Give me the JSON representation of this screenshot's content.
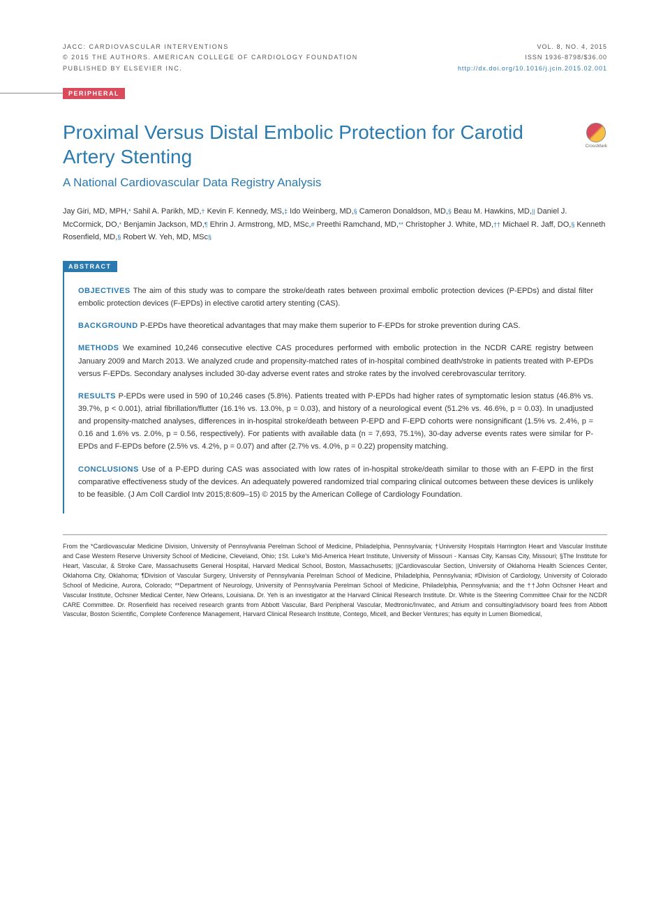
{
  "header": {
    "journal": "JACC: CARDIOVASCULAR INTERVENTIONS",
    "copyright": "© 2015 THE AUTHORS. AMERICAN COLLEGE OF CARDIOLOGY FOUNDATION",
    "publisher": "PUBLISHED BY ELSEVIER INC.",
    "vol": "VOL. 8, NO. 4, 2015",
    "issn": "ISSN 1936-8798/$36.00",
    "doi": "http://dx.doi.org/10.1016/j.jcin.2015.02.001"
  },
  "section_tag": "PERIPHERAL",
  "title": "Proximal Versus Distal Embolic Protection for Carotid Artery Stenting",
  "subtitle": "A National Cardiovascular Data Registry Analysis",
  "crossmark": "CrossMark",
  "authors_html": "Jay Giri, MD, MPH,<span class='aff'>*</span> Sahil A. Parikh, MD,<span class='aff'>†</span> Kevin F. Kennedy, MS,<span class='aff'>‡</span> Ido Weinberg, MD,<span class='aff'>§</span> Cameron Donaldson, MD,<span class='aff'>§</span> Beau M. Hawkins, MD,<span class='aff'>||</span> Daniel J. McCormick, DO,<span class='aff'>*</span> Benjamin Jackson, MD,<span class='aff'>¶</span> Ehrin J. Armstrong, MD, MSc,<span class='aff'>#</span> Preethi Ramchand, MD,<span class='aff'>**</span> Christopher J. White, MD,<span class='aff'>††</span> Michael R. Jaff, DO,<span class='aff'>§</span> Kenneth Rosenfield, MD,<span class='aff'>§</span> Robert W. Yeh, MD, MSc<span class='aff'>§</span>",
  "abstract_tag": "ABSTRACT",
  "abstract": {
    "objectives": {
      "label": "OBJECTIVES",
      "text": "The aim of this study was to compare the stroke/death rates between proximal embolic protection devices (P-EPDs) and distal filter embolic protection devices (F-EPDs) in elective carotid artery stenting (CAS)."
    },
    "background": {
      "label": "BACKGROUND",
      "text": "P-EPDs have theoretical advantages that may make them superior to F-EPDs for stroke prevention during CAS."
    },
    "methods": {
      "label": "METHODS",
      "text": "We examined 10,246 consecutive elective CAS procedures performed with embolic protection in the NCDR CARE registry between January 2009 and March 2013. We analyzed crude and propensity-matched rates of in-hospital combined death/stroke in patients treated with P-EPDs versus F-EPDs. Secondary analyses included 30-day adverse event rates and stroke rates by the involved cerebrovascular territory."
    },
    "results": {
      "label": "RESULTS",
      "text": "P-EPDs were used in 590 of 10,246 cases (5.8%). Patients treated with P-EPDs had higher rates of symptomatic lesion status (46.8% vs. 39.7%, p < 0.001), atrial fibrillation/flutter (16.1% vs. 13.0%, p = 0.03), and history of a neurological event (51.2% vs. 46.6%, p = 0.03). In unadjusted and propensity-matched analyses, differences in in-hospital stroke/death between P-EPD and F-EPD cohorts were nonsignificant (1.5% vs. 2.4%, p = 0.16 and 1.6% vs. 2.0%, p = 0.56, respectively). For patients with available data (n = 7,693, 75.1%), 30-day adverse events rates were similar for P-EPDs and F-EPDs before (2.5% vs. 4.2%, p = 0.07) and after (2.7% vs. 4.0%, p = 0.22) propensity matching."
    },
    "conclusions": {
      "label": "CONCLUSIONS",
      "text": "Use of a P-EPD during CAS was associated with low rates of in-hospital stroke/death similar to those with an F-EPD in the first comparative effectiveness study of the devices. An adequately powered randomized trial comparing clinical outcomes between these devices is unlikely to be feasible. (J Am Coll Cardiol Intv 2015;8:609–15) © 2015 by the American College of Cardiology Foundation."
    }
  },
  "footnote": "From the *Cardiovascular Medicine Division, University of Pennsylvania Perelman School of Medicine, Philadelphia, Pennsylvania; †University Hospitals Harrington Heart and Vascular Institute and Case Western Reserve University School of Medicine, Cleveland, Ohio; ‡St. Luke's Mid-America Heart Institute, University of Missouri - Kansas City, Kansas City, Missouri; §The Institute for Heart, Vascular, & Stroke Care, Massachusetts General Hospital, Harvard Medical School, Boston, Massachusetts; ||Cardiovascular Section, University of Oklahoma Health Sciences Center, Oklahoma City, Oklahoma; ¶Division of Vascular Surgery, University of Pennsylvania Perelman School of Medicine, Philadelphia, Pennsylvania; #Division of Cardiology, University of Colorado School of Medicine, Aurora, Colorado; **Department of Neurology, University of Pennsylvania Perelman School of Medicine, Philadelphia, Pennsylvania; and the ††John Ochsner Heart and Vascular Institute, Ochsner Medical Center, New Orleans, Louisiana. Dr. Yeh is an investigator at the Harvard Clinical Research Institute. Dr. White is the Steering Committee Chair for the NCDR CARE Committee. Dr. Rosenfield has received research grants from Abbott Vascular, Bard Peripheral Vascular, Medtronic/Invatec, and Atrium and consulting/advisory board fees from Abbott Vascular, Boston Scientific, Complete Conference Management, Harvard Clinical Research Institute, Contego, Micell, and Becker Ventures; has equity in Lumen Biomedical,"
}
